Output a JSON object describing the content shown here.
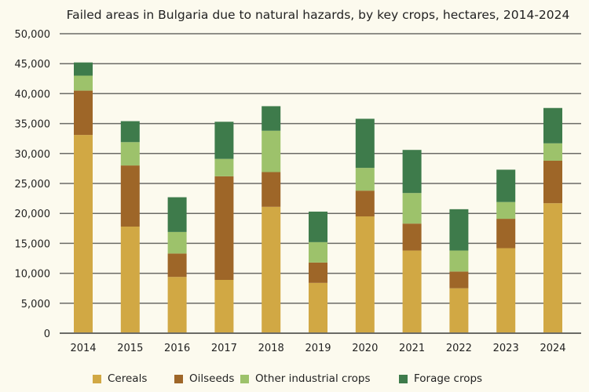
{
  "chart_data": {
    "type": "bar",
    "stacked": true,
    "title": "Failed areas in Bulgaria due to natural hazards, by key crops, hectares, 2014-2024",
    "xlabel": "",
    "ylabel": "",
    "ylim": [
      0,
      50000
    ],
    "yticks": [
      0,
      5000,
      10000,
      15000,
      20000,
      25000,
      30000,
      35000,
      40000,
      45000,
      50000
    ],
    "ytick_labels": [
      "0",
      "5,000",
      "10,000",
      "15,000",
      "20,000",
      "25,000",
      "30,000",
      "35,000",
      "40,000",
      "45,000",
      "50,000"
    ],
    "grid": true,
    "legend_position": "bottom",
    "categories": [
      "2014",
      "2015",
      "2016",
      "2017",
      "2018",
      "2019",
      "2020",
      "2021",
      "2022",
      "2023",
      "2024"
    ],
    "series": [
      {
        "name": "Cereals",
        "color": "#d1a844",
        "values": [
          33100,
          17800,
          9400,
          8900,
          21100,
          8400,
          19500,
          13800,
          7500,
          14200,
          21700
        ]
      },
      {
        "name": "Oilseeds",
        "color": "#9e6628",
        "values": [
          7400,
          10200,
          3900,
          17300,
          5800,
          3400,
          4300,
          4500,
          2800,
          4900,
          7100
        ]
      },
      {
        "name": "Other industrial crops",
        "color": "#9dc26b",
        "values": [
          2500,
          3900,
          3600,
          2900,
          6900,
          3400,
          3800,
          5100,
          3500,
          2800,
          2900
        ]
      },
      {
        "name": "Forage crops",
        "color": "#3e7b4b",
        "values": [
          2200,
          3500,
          5800,
          6200,
          4100,
          5100,
          8200,
          7200,
          6900,
          5400,
          5900
        ]
      }
    ]
  },
  "legend": {
    "items": [
      {
        "label": "Cereals",
        "color": "#d1a844"
      },
      {
        "label": "Oilseeds",
        "color": "#9e6628"
      },
      {
        "label": "Other industrial crops",
        "color": "#9dc26b"
      },
      {
        "label": "Forage crops",
        "color": "#3e7b4b"
      }
    ]
  }
}
